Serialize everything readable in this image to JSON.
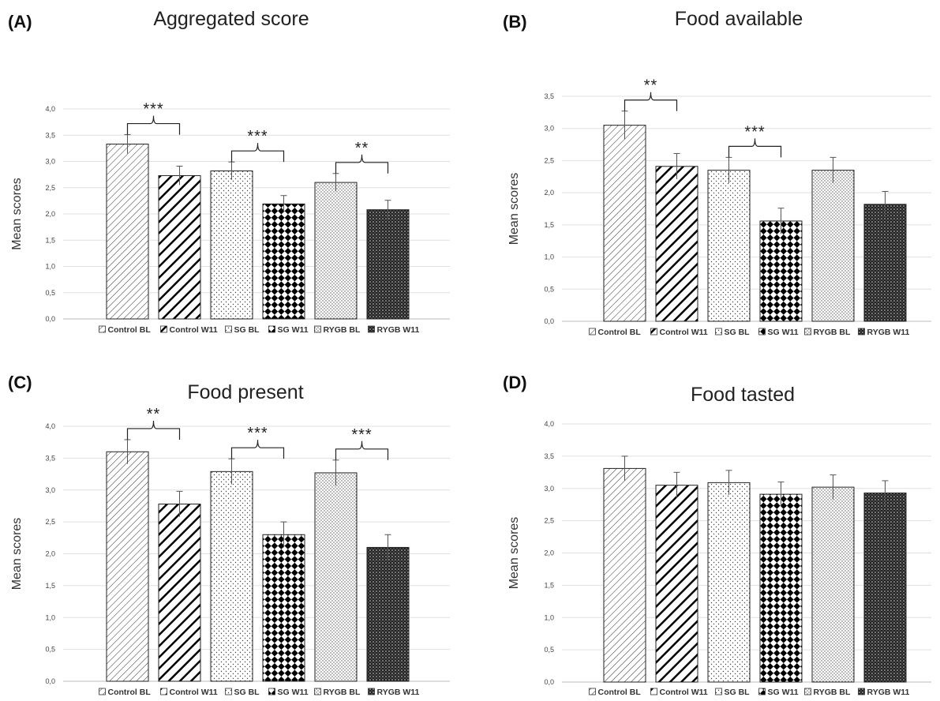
{
  "panels": [
    {
      "panel_label": "(A)",
      "chart_data": {
        "type": "bar",
        "title": "Aggregated score",
        "ylabel": "Mean scores",
        "xlabel": "",
        "categories": [
          "Control BL",
          "Control W11",
          "SG BL",
          "SG W11",
          "RYGB BL",
          "RYGB W11"
        ],
        "values": [
          3.33,
          2.73,
          2.82,
          2.19,
          2.6,
          2.08
        ],
        "errors": [
          0.18,
          0.18,
          0.17,
          0.16,
          0.17,
          0.18
        ],
        "ylim": [
          0,
          4
        ],
        "yticks": [
          "0,0",
          "0,5",
          "1,0",
          "1,5",
          "2,0",
          "2,5",
          "3,0",
          "3,5",
          "4,0"
        ],
        "grid": true,
        "legend_position": "bottom",
        "significance": [
          {
            "pair": [
              0,
              1
            ],
            "label": "***"
          },
          {
            "pair": [
              2,
              3
            ],
            "label": "***"
          },
          {
            "pair": [
              4,
              5
            ],
            "label": "**"
          }
        ]
      }
    },
    {
      "panel_label": "(B)",
      "chart_data": {
        "type": "bar",
        "title": "Food available",
        "ylabel": "Mean  scores",
        "xlabel": "",
        "categories": [
          "Control BL",
          "Control W11",
          "SG BL",
          "SG W11",
          "RYGB BL",
          "RYGB W11"
        ],
        "values": [
          3.05,
          2.41,
          2.35,
          1.56,
          2.35,
          1.82
        ],
        "errors": [
          0.22,
          0.2,
          0.2,
          0.2,
          0.2,
          0.2
        ],
        "ylim": [
          0,
          3.5
        ],
        "yticks": [
          "0,0",
          "0,5",
          "1,0",
          "1,5",
          "2,0",
          "2,5",
          "3,0",
          "3,5"
        ],
        "grid": true,
        "legend_position": "bottom",
        "significance": [
          {
            "pair": [
              0,
              1
            ],
            "label": "**"
          },
          {
            "pair": [
              2,
              3
            ],
            "label": "***"
          }
        ]
      }
    },
    {
      "panel_label": "(C)",
      "chart_data": {
        "type": "bar",
        "title": "Food present",
        "ylabel": "Mean scores",
        "xlabel": "",
        "categories": [
          "Control BL",
          "Control W11",
          "SG BL",
          "SG W11",
          "RYGB BL",
          "RYGB W11"
        ],
        "values": [
          3.6,
          2.78,
          3.29,
          2.3,
          3.27,
          2.1
        ],
        "errors": [
          0.19,
          0.2,
          0.2,
          0.2,
          0.2,
          0.2
        ],
        "ylim": [
          0,
          4
        ],
        "yticks": [
          "0,0",
          "0,5",
          "1,0",
          "1,5",
          "2,0",
          "2,5",
          "3,0",
          "3,5",
          "4,0"
        ],
        "grid": true,
        "legend_position": "bottom",
        "significance": [
          {
            "pair": [
              0,
              1
            ],
            "label": "**"
          },
          {
            "pair": [
              2,
              3
            ],
            "label": "***"
          },
          {
            "pair": [
              4,
              5
            ],
            "label": "***"
          }
        ]
      }
    },
    {
      "panel_label": "(D)",
      "chart_data": {
        "type": "bar",
        "title": "Food tasted",
        "ylabel": "Mean scores",
        "xlabel": "",
        "categories": [
          "Control BL",
          "Control W11",
          "SG BL",
          "SG W11",
          "RYGB BL",
          "RYGB W11"
        ],
        "values": [
          3.31,
          3.05,
          3.09,
          2.91,
          3.02,
          2.93
        ],
        "errors": [
          0.19,
          0.2,
          0.19,
          0.19,
          0.19,
          0.19
        ],
        "ylim": [
          0,
          4
        ],
        "yticks": [
          "0,0",
          "0,5",
          "1,0",
          "1,5",
          "2,0",
          "2,5",
          "3,0",
          "3,5",
          "4,0"
        ],
        "grid": true,
        "legend_position": "bottom",
        "significance": []
      }
    }
  ],
  "legend_labels": [
    "Control BL",
    "Control W11",
    "SG BL",
    "SG W11",
    "RYGB BL",
    "RYGB W11"
  ]
}
